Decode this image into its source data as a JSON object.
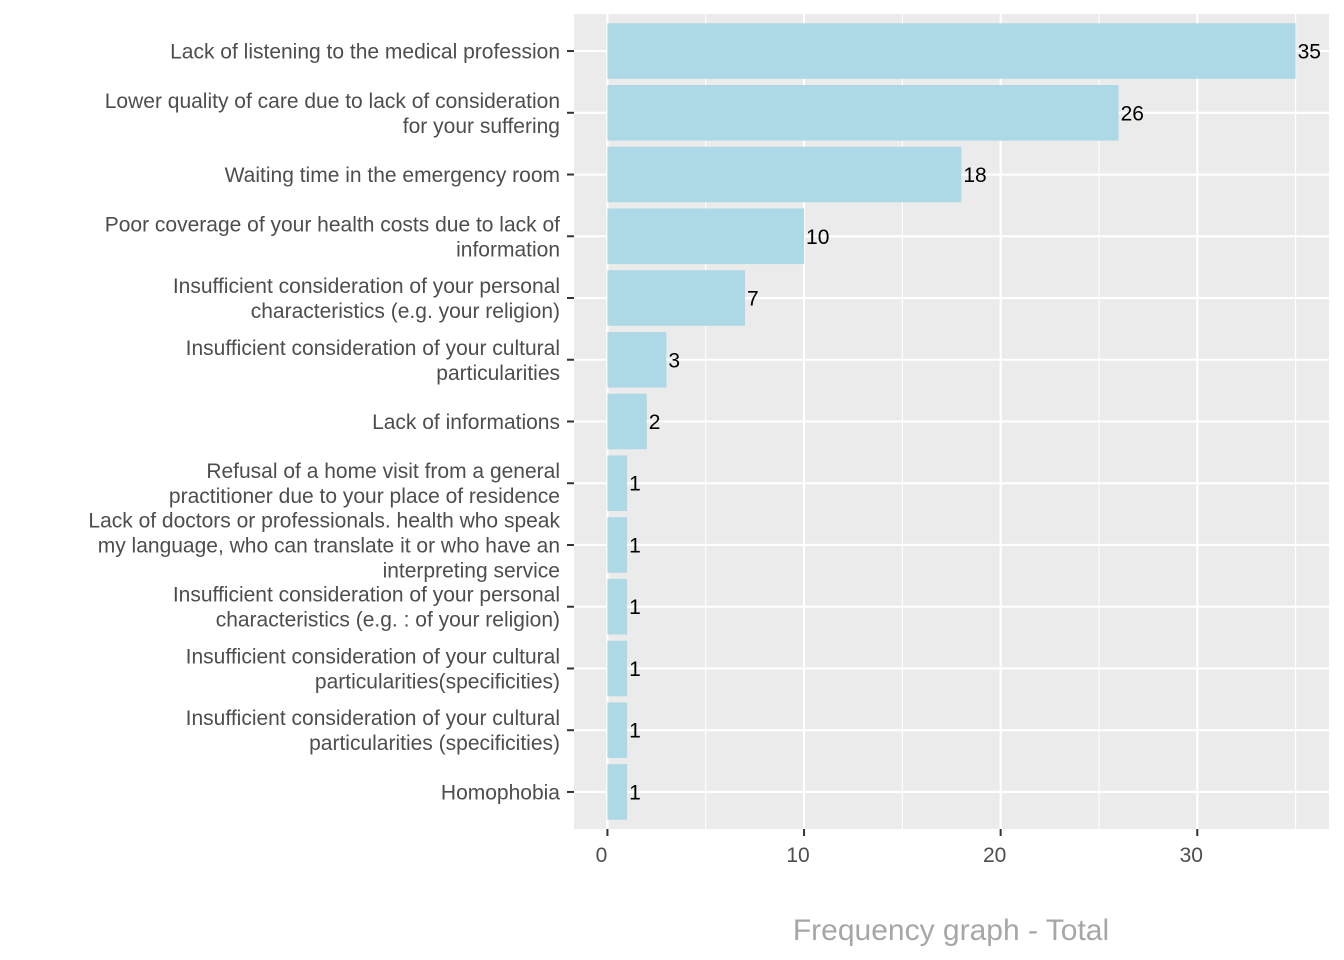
{
  "chart_data": {
    "type": "bar",
    "orientation": "horizontal",
    "title": "Frequency graph - Total",
    "title_position": "bottom-center",
    "xlabel": "",
    "ylabel": "",
    "xlim": [
      -1.7,
      36.7
    ],
    "x_ticks": [
      0,
      10,
      20,
      30
    ],
    "x_tick_labels": [
      "0",
      "10",
      "20",
      "30"
    ],
    "grid": true,
    "legend": "none",
    "bar_color": "#ADD8E6",
    "panel_background": "#EBEBEB",
    "categories": [
      [
        "Lack of listening to the medical profession"
      ],
      [
        "Lower quality of care due to lack of consideration",
        "for your suffering"
      ],
      [
        "Waiting time in the emergency room"
      ],
      [
        "Poor coverage of your health costs due to lack of",
        "information"
      ],
      [
        "Insufficient consideration of your personal",
        "characteristics (e.g. your religion)"
      ],
      [
        "Insufficient consideration of your cultural",
        "particularities"
      ],
      [
        "Lack of informations"
      ],
      [
        "Refusal of a home visit from a general",
        "practitioner due to your place of residence"
      ],
      [
        "Lack of doctors or professionals. health who speak",
        "my language, who can translate it or who have an",
        "interpreting service"
      ],
      [
        "Insufficient consideration of your personal",
        "characteristics (e.g. : of your religion)"
      ],
      [
        "Insufficient consideration of your cultural",
        "particularities(specificities)"
      ],
      [
        "Insufficient consideration of your cultural",
        "particularities (specificities)"
      ],
      [
        "Homophobia"
      ]
    ],
    "values": [
      35,
      26,
      18,
      10,
      7,
      3,
      2,
      1,
      1,
      1,
      1,
      1,
      1
    ],
    "data_labels": [
      "35",
      "26",
      "18",
      "10",
      "7",
      "3",
      "2",
      "1",
      "1",
      "1",
      "1",
      "1",
      "1"
    ]
  }
}
